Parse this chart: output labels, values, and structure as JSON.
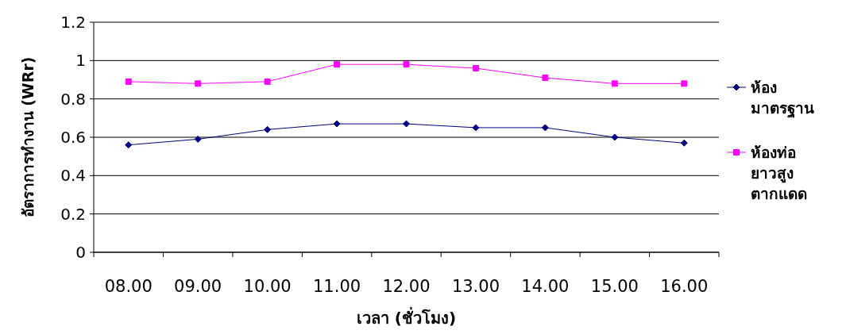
{
  "chart_data": {
    "type": "line",
    "xlabel": "เวลา (ชั่วโมง)",
    "ylabel": "อัตราการทำงาน (WRr)",
    "categories": [
      "08.00",
      "09.00",
      "10.00",
      "11.00",
      "12.00",
      "13.00",
      "14.00",
      "15.00",
      "16.00"
    ],
    "series": [
      {
        "name": "ห้อง มาตรฐาน",
        "color": "#000080",
        "marker": "diamond",
        "values": [
          0.56,
          0.59,
          0.64,
          0.67,
          0.67,
          0.65,
          0.65,
          0.6,
          0.57
        ]
      },
      {
        "name": "ห้องท่อ ยาวสูง ตากแดด",
        "color": "#ff00ff",
        "marker": "square",
        "values": [
          0.89,
          0.88,
          0.89,
          0.98,
          0.98,
          0.96,
          0.91,
          0.88,
          0.88
        ]
      }
    ],
    "ylim": [
      0,
      1.2
    ],
    "yticks": [
      0,
      0.2,
      0.4,
      0.6,
      0.8,
      1,
      1.2
    ],
    "grid": "y",
    "legend": "right"
  }
}
